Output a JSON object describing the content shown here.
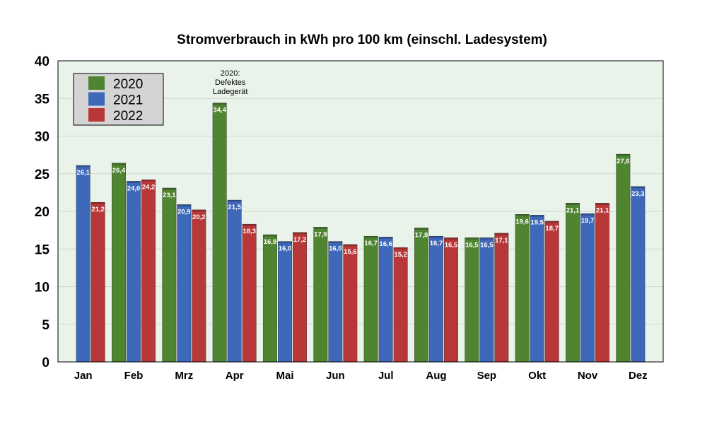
{
  "chart_data": {
    "type": "bar",
    "title": "Stromverbrauch in kWh pro 100 km (einschl. Ladesystem)",
    "xlabel": "",
    "ylabel": "",
    "ylim": [
      0,
      40
    ],
    "yticks": [
      "0",
      "5",
      "10",
      "15",
      "20",
      "25",
      "30",
      "35",
      "40"
    ],
    "grid": true,
    "legend_position": "top-left",
    "plot_background": "#eaf3ea",
    "categories": [
      "Jan",
      "Feb",
      "Mrz",
      "Apr",
      "Mai",
      "Jun",
      "Jul",
      "Aug",
      "Sep",
      "Okt",
      "Nov",
      "Dez"
    ],
    "series": [
      {
        "name": "2020",
        "color": "#4f8531",
        "values": [
          null,
          26.4,
          23.1,
          34.4,
          16.9,
          17.9,
          16.7,
          17.8,
          16.5,
          19.6,
          21.1,
          27.6
        ],
        "labels": [
          "",
          "26,4",
          "23,1",
          "34,4",
          "16,9",
          "17,9",
          "16,7",
          "17,8",
          "16,5",
          "19,6",
          "21,1",
          "27,6"
        ]
      },
      {
        "name": "2021",
        "color": "#3e68b9",
        "values": [
          26.1,
          24.0,
          20.9,
          21.5,
          16.0,
          16.0,
          16.6,
          16.7,
          16.5,
          19.5,
          19.7,
          23.3
        ],
        "labels": [
          "26,1",
          "24,0",
          "20,9",
          "21,5",
          "16,0",
          "16,0",
          "16,6",
          "16,7",
          "16,5",
          "19,5",
          "19,7",
          "23,3"
        ]
      },
      {
        "name": "2022",
        "color": "#b8383a",
        "values": [
          21.2,
          24.2,
          20.2,
          18.3,
          17.2,
          15.6,
          15.2,
          16.5,
          17.1,
          18.7,
          21.1,
          null
        ],
        "labels": [
          "21,2",
          "24,2",
          "20,2",
          "18,3",
          "17,2",
          "15,6",
          "15,2",
          "16,5",
          "17,1",
          "18,7",
          "21,1",
          ""
        ]
      }
    ],
    "annotations": [
      {
        "category": "Apr",
        "lines": [
          "2020:",
          "Defektes",
          "Ladegerät"
        ]
      }
    ]
  }
}
